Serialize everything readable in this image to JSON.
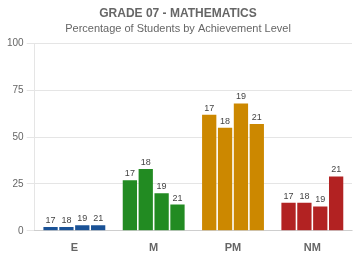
{
  "chart_data": {
    "type": "bar",
    "title": "GRADE 07 - MATHEMATICS",
    "subtitle": "Percentage of Students by Achievement Level",
    "categories": [
      "E",
      "M",
      "PM",
      "NM"
    ],
    "series": [
      {
        "name": "17",
        "colors": [
          "#1a5296",
          "#228B22",
          "#cc8800",
          "#b22222"
        ],
        "values": [
          2,
          27,
          62,
          15
        ]
      },
      {
        "name": "18",
        "colors": [
          "#1a5296",
          "#228B22",
          "#cc8800",
          "#b22222"
        ],
        "values": [
          2,
          33,
          55,
          15
        ]
      },
      {
        "name": "19",
        "colors": [
          "#1a5296",
          "#228B22",
          "#cc8800",
          "#b22222"
        ],
        "values": [
          3,
          20,
          68,
          13
        ]
      },
      {
        "name": "21",
        "colors": [
          "#1a5296",
          "#228B22",
          "#cc8800",
          "#b22222"
        ],
        "values": [
          3,
          14,
          57,
          29
        ]
      }
    ],
    "ylim": [
      0,
      100
    ],
    "yticks": [
      0,
      25,
      50,
      75,
      100
    ],
    "grid": true
  }
}
